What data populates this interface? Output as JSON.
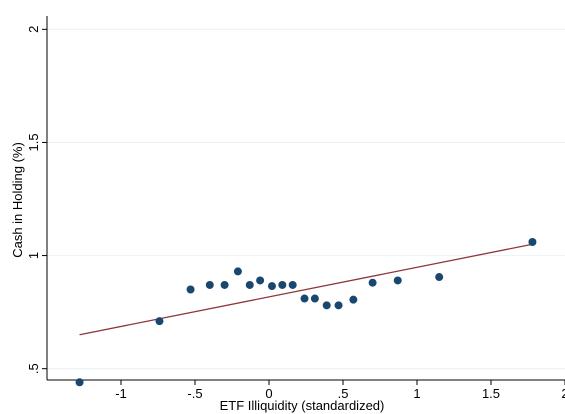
{
  "chart_data": {
    "type": "scatter",
    "title": "",
    "xlabel": "ETF Illiquidity (standardized)",
    "ylabel": "Cash in Holding (%)",
    "xlim": [
      -1.5,
      2
    ],
    "ylim": [
      0.45,
      2.05
    ],
    "grid": "horizontal",
    "legend": "none",
    "x_ticks": [
      {
        "value": -1,
        "label": "-1"
      },
      {
        "value": -0.5,
        "label": "-.5"
      },
      {
        "value": 0,
        "label": "0"
      },
      {
        "value": 0.5,
        "label": ".5"
      },
      {
        "value": 1,
        "label": "1"
      },
      {
        "value": 1.5,
        "label": "1.5"
      },
      {
        "value": 2,
        "label": "2"
      }
    ],
    "y_ticks": [
      {
        "value": 0.5,
        "label": ".5"
      },
      {
        "value": 1,
        "label": "1"
      },
      {
        "value": 1.5,
        "label": "1.5"
      },
      {
        "value": 2,
        "label": "2"
      }
    ],
    "series": [
      {
        "type": "scatter",
        "color": "#1a476f",
        "points": [
          {
            "x": -1.28,
            "y": 0.44
          },
          {
            "x": -0.74,
            "y": 0.71
          },
          {
            "x": -0.53,
            "y": 0.85
          },
          {
            "x": -0.4,
            "y": 0.87
          },
          {
            "x": -0.3,
            "y": 0.87
          },
          {
            "x": -0.21,
            "y": 0.93
          },
          {
            "x": -0.13,
            "y": 0.87
          },
          {
            "x": -0.06,
            "y": 0.89
          },
          {
            "x": 0.02,
            "y": 0.865
          },
          {
            "x": 0.09,
            "y": 0.87
          },
          {
            "x": 0.16,
            "y": 0.87
          },
          {
            "x": 0.24,
            "y": 0.81
          },
          {
            "x": 0.31,
            "y": 0.81
          },
          {
            "x": 0.39,
            "y": 0.78
          },
          {
            "x": 0.47,
            "y": 0.78
          },
          {
            "x": 0.57,
            "y": 0.805
          },
          {
            "x": 0.7,
            "y": 0.88
          },
          {
            "x": 0.87,
            "y": 0.89
          },
          {
            "x": 1.15,
            "y": 0.905
          },
          {
            "x": 1.78,
            "y": 1.06
          }
        ]
      },
      {
        "type": "line",
        "color": "#90353b",
        "points": [
          {
            "x": -1.28,
            "y": 0.65
          },
          {
            "x": 1.78,
            "y": 1.05
          }
        ]
      }
    ],
    "colors": {
      "background": "#ffffff",
      "grid": "#eaf2f3",
      "axis": "#000000",
      "marker": "#1a476f",
      "fit_line": "#90353b"
    }
  }
}
